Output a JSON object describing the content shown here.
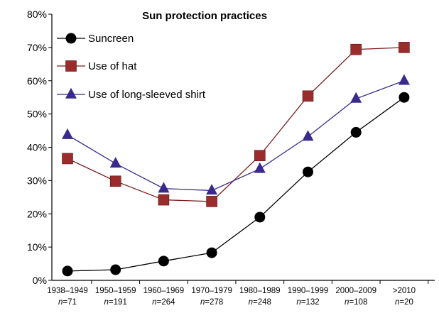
{
  "chart_data": {
    "type": "line",
    "title": "Sun protection practices",
    "xlabel": "",
    "ylabel": "",
    "ylim": [
      0,
      80
    ],
    "y_ticks": [
      "0%",
      "10%",
      "20%",
      "30%",
      "40%",
      "50%",
      "60%",
      "70%",
      "80%"
    ],
    "grid": false,
    "legend_position": "top-left",
    "categories": [
      "1938–1949",
      "1950–1959",
      "1960–1969",
      "1970–1979",
      "1980–1989",
      "1990–1999",
      "2000–2009",
      ">2010"
    ],
    "sample_sizes": [
      "n=71",
      "n=191",
      "n=264",
      "n=278",
      "n=248",
      "n=132",
      "n=108",
      "n=20"
    ],
    "series": [
      {
        "name": "Suncreen",
        "marker": "circle",
        "color": "#000000",
        "line_color": "#000000",
        "values": [
          2.8,
          3.2,
          5.8,
          8.3,
          19.0,
          32.6,
          44.5,
          55.0
        ]
      },
      {
        "name": "Use of hat",
        "marker": "square",
        "color": "#9b2c2c",
        "line_color": "#7a1f1f",
        "values": [
          36.6,
          29.8,
          24.2,
          23.7,
          37.5,
          55.4,
          69.4,
          70.0
        ]
      },
      {
        "name": "Use of long-sleeved shirt",
        "marker": "triangle",
        "color": "#3a2a8c",
        "line_color": "#3a2a8c",
        "values": [
          43.7,
          35.1,
          27.6,
          27.0,
          33.5,
          43.2,
          54.6,
          60.0
        ]
      }
    ]
  }
}
